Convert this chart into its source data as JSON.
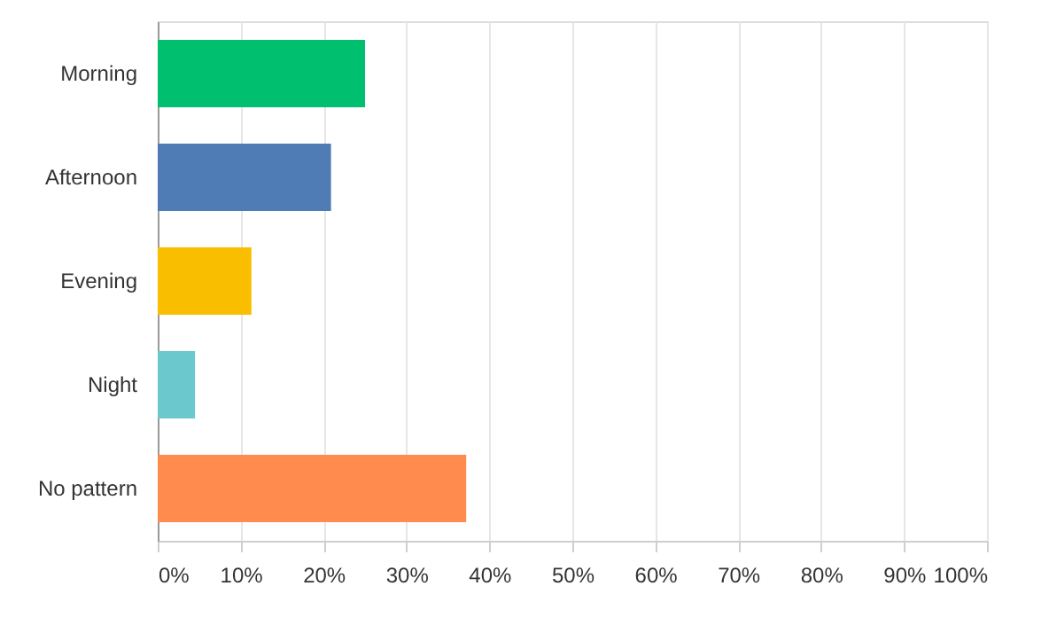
{
  "chart_data": {
    "type": "bar",
    "orientation": "horizontal",
    "categories": [
      "Morning",
      "Afternoon",
      "Evening",
      "Night",
      "No pattern"
    ],
    "values": [
      25.0,
      20.9,
      11.3,
      4.5,
      37.2
    ],
    "colors": [
      "#00bf6f",
      "#507cb6",
      "#f9be00",
      "#6bc8cd",
      "#ff8b4f"
    ],
    "xlim": [
      0,
      100
    ],
    "xticks": [
      {
        "value": 0,
        "label": "0%"
      },
      {
        "value": 10,
        "label": "10%"
      },
      {
        "value": 20,
        "label": "20%"
      },
      {
        "value": 30,
        "label": "30%"
      },
      {
        "value": 40,
        "label": "40%"
      },
      {
        "value": 50,
        "label": "50%"
      },
      {
        "value": 60,
        "label": "60%"
      },
      {
        "value": 70,
        "label": "70%"
      },
      {
        "value": 80,
        "label": "80%"
      },
      {
        "value": 90,
        "label": "90%"
      },
      {
        "value": 100,
        "label": "100%"
      }
    ],
    "grid": "x"
  }
}
